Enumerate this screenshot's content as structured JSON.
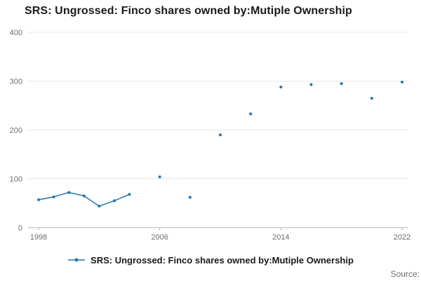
{
  "title": "SRS: Ungrossed: Finco shares owned by:Mutiple Ownership",
  "legend": {
    "label": "SRS: Ungrossed: Finco shares owned by:Mutiple Ownership"
  },
  "source": "Source:",
  "colors": {
    "series": "#1f77b4",
    "grid": "#e6e6e6",
    "axis": "#b6b6b6",
    "tick_text": "#6e6e6e",
    "title_text": "#1a1a1a"
  },
  "chart_data": {
    "type": "line",
    "title": "SRS: Ungrossed: Finco shares owned by:Mutiple Ownership",
    "xlabel": "",
    "ylabel": "",
    "x": [
      1998,
      1999,
      2000,
      2001,
      2002,
      2003,
      2004,
      2005,
      2006,
      2007,
      2008,
      2009,
      2010,
      2011,
      2012,
      2013,
      2014,
      2015,
      2016,
      2017,
      2018,
      2019,
      2020,
      2021,
      2022
    ],
    "series": [
      {
        "name": "SRS: Ungrossed: Finco shares owned by:Mutiple Ownership",
        "values": [
          57,
          63,
          72,
          65,
          44,
          55,
          68,
          null,
          104,
          null,
          62,
          null,
          190,
          null,
          233,
          null,
          288,
          null,
          293,
          null,
          295,
          null,
          265,
          null,
          298
        ]
      }
    ],
    "xticks": [
      1998,
      2006,
      2014,
      2022
    ],
    "yticks": [
      0,
      100,
      200,
      300,
      400
    ],
    "ylim": [
      0,
      400
    ],
    "grid": "horizontal",
    "marker": "dot",
    "legend_position": "bottom",
    "note": "line breaks where values are missing (null); isolated markers shown for gap years"
  }
}
